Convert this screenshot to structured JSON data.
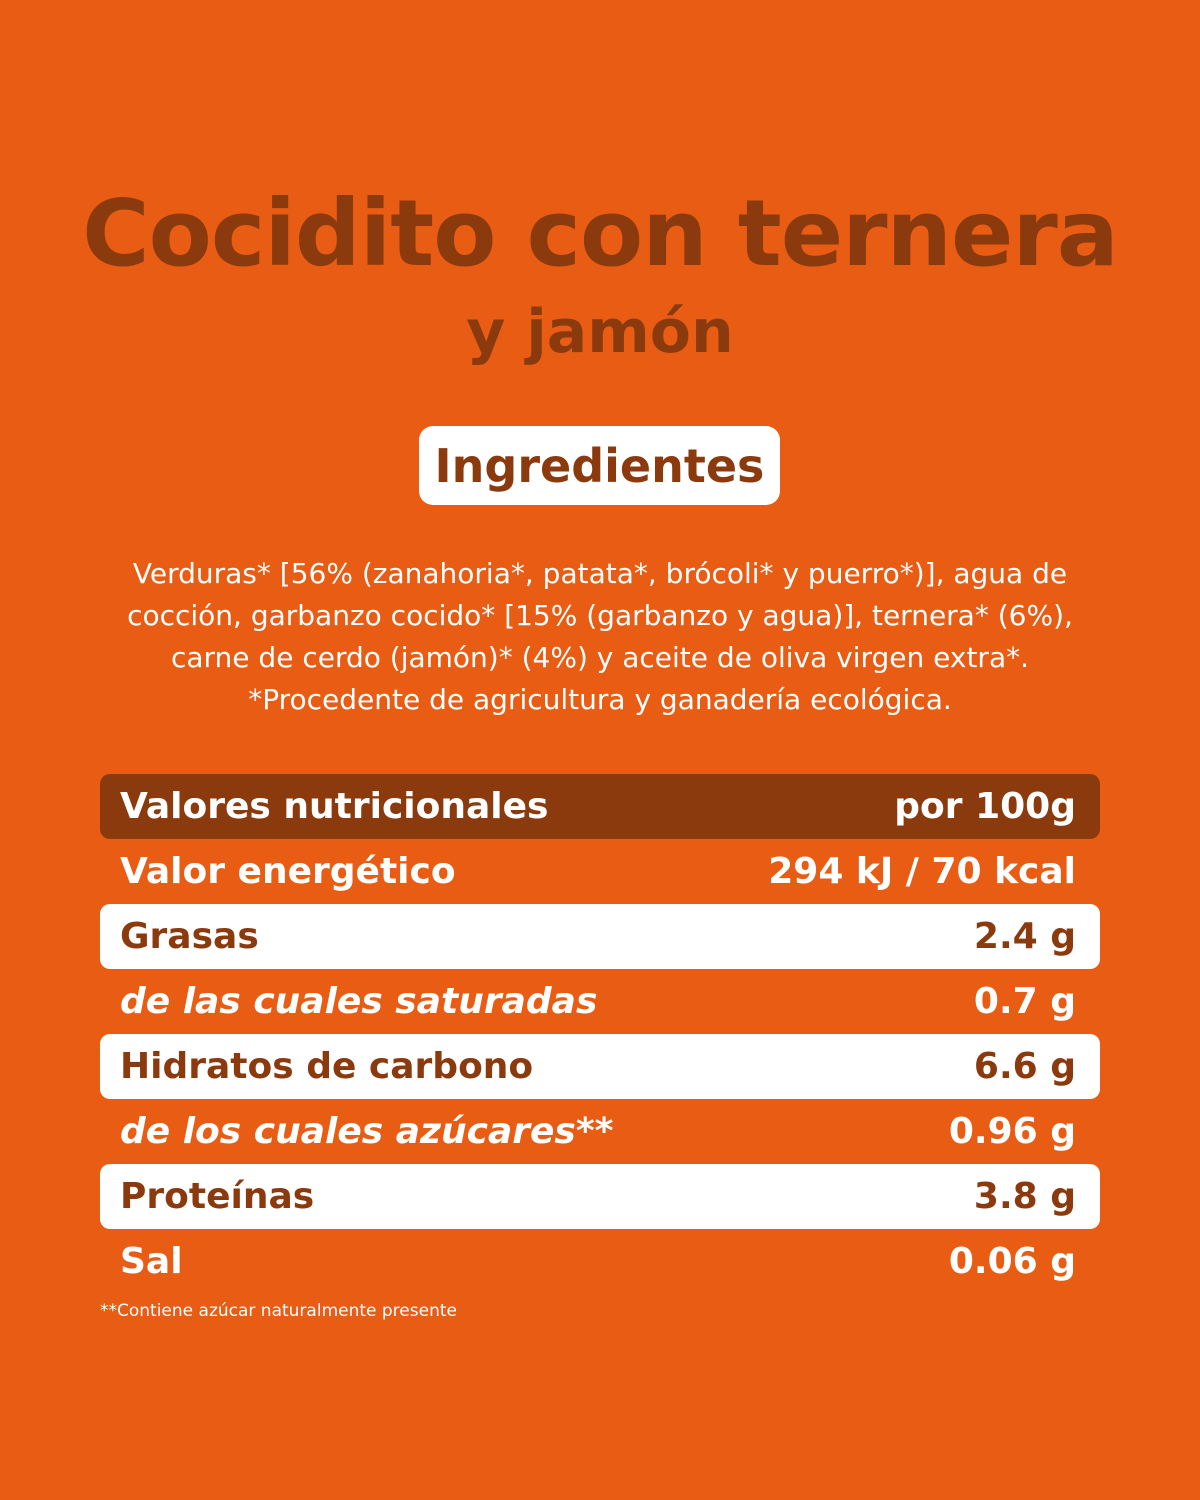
{
  "header": {
    "title": "Cocidito con ternera",
    "subtitle": "y jamón"
  },
  "ingredients_badge": "Ingredientes",
  "ingredients_lines": [
    "Verduras* [56% (zanahoria*, patata*, brócoli* y puerro*)], agua de",
    "cocción, garbanzo cocido* [15% (garbanzo y agua)], ternera* (6%),",
    "carne de cerdo (jamón)* (4%) y aceite de oliva virgen extra*.",
    "*Procedente de agricultura y ganadería ecológica."
  ],
  "nutrition": {
    "header_label": "Valores nutricionales",
    "header_value": "por 100g",
    "rows": [
      {
        "label": "Valor energético",
        "value": "294 kJ / 70 kcal"
      },
      {
        "label": "Grasas",
        "value": "2.4 g"
      },
      {
        "label": "de las cuales saturadas",
        "value": "0.7 g"
      },
      {
        "label": "Hidratos de carbono",
        "value": "6.6 g"
      },
      {
        "label": "de los cuales azúcares**",
        "value": "0.96 g"
      },
      {
        "label": "Proteínas",
        "value": "3.8 g"
      },
      {
        "label": "Sal",
        "value": "0.06 g"
      }
    ]
  },
  "footnote": "**Contiene azúcar naturalmente presente",
  "colors": {
    "background": "#E85C14",
    "brown": "#8B3A0E",
    "white": "#FFFFFF"
  }
}
